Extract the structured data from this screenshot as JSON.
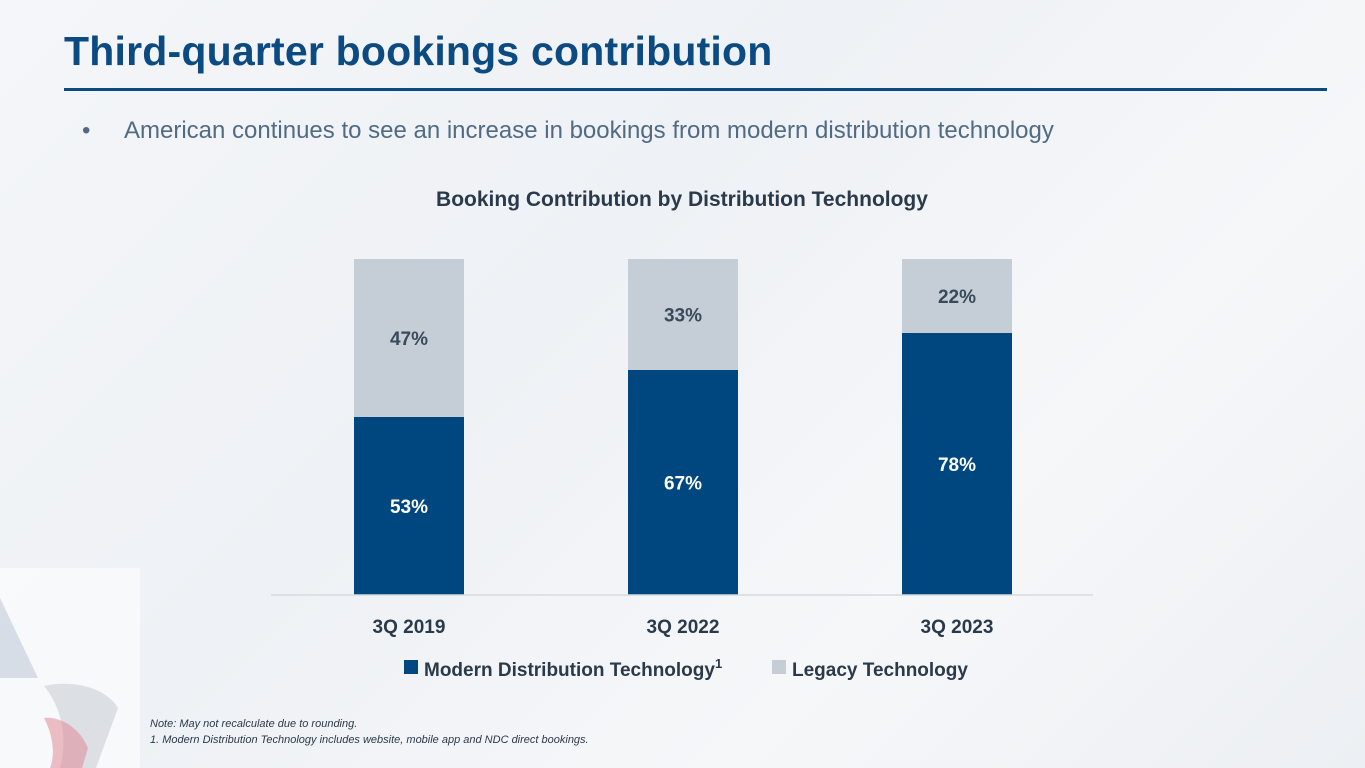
{
  "page": {
    "title": "Third-quarter bookings contribution",
    "bullet_symbol": "•",
    "bullet": "American continues to see an increase in bookings from modern distribution technology",
    "note": "Note: May not recalculate due to rounding.",
    "footnote": "1. Modern Distribution Technology includes website, mobile app and NDC direct bookings."
  },
  "colors": {
    "title": "#0c4a82",
    "modern": "#00467f",
    "legacy": "#c5ced6",
    "axis_text": "#2b3a4a",
    "bar_label_light": "#ffffff",
    "bar_label_dark": "#3a4a5a"
  },
  "chart_data": {
    "type": "bar",
    "stacked": true,
    "title": "Booking Contribution by Distribution Technology",
    "categories": [
      "3Q 2019",
      "3Q 2022",
      "3Q 2023"
    ],
    "series": [
      {
        "name": "Modern Distribution Technology",
        "superscript": "1",
        "values": [
          53,
          67,
          78
        ],
        "labels": [
          "53%",
          "67%",
          "78%"
        ]
      },
      {
        "name": "Legacy Technology",
        "values": [
          47,
          33,
          22
        ],
        "labels": [
          "47%",
          "33%",
          "22%"
        ]
      }
    ],
    "ylim": [
      0,
      100
    ],
    "legend": "bottom-center",
    "grid": false
  }
}
